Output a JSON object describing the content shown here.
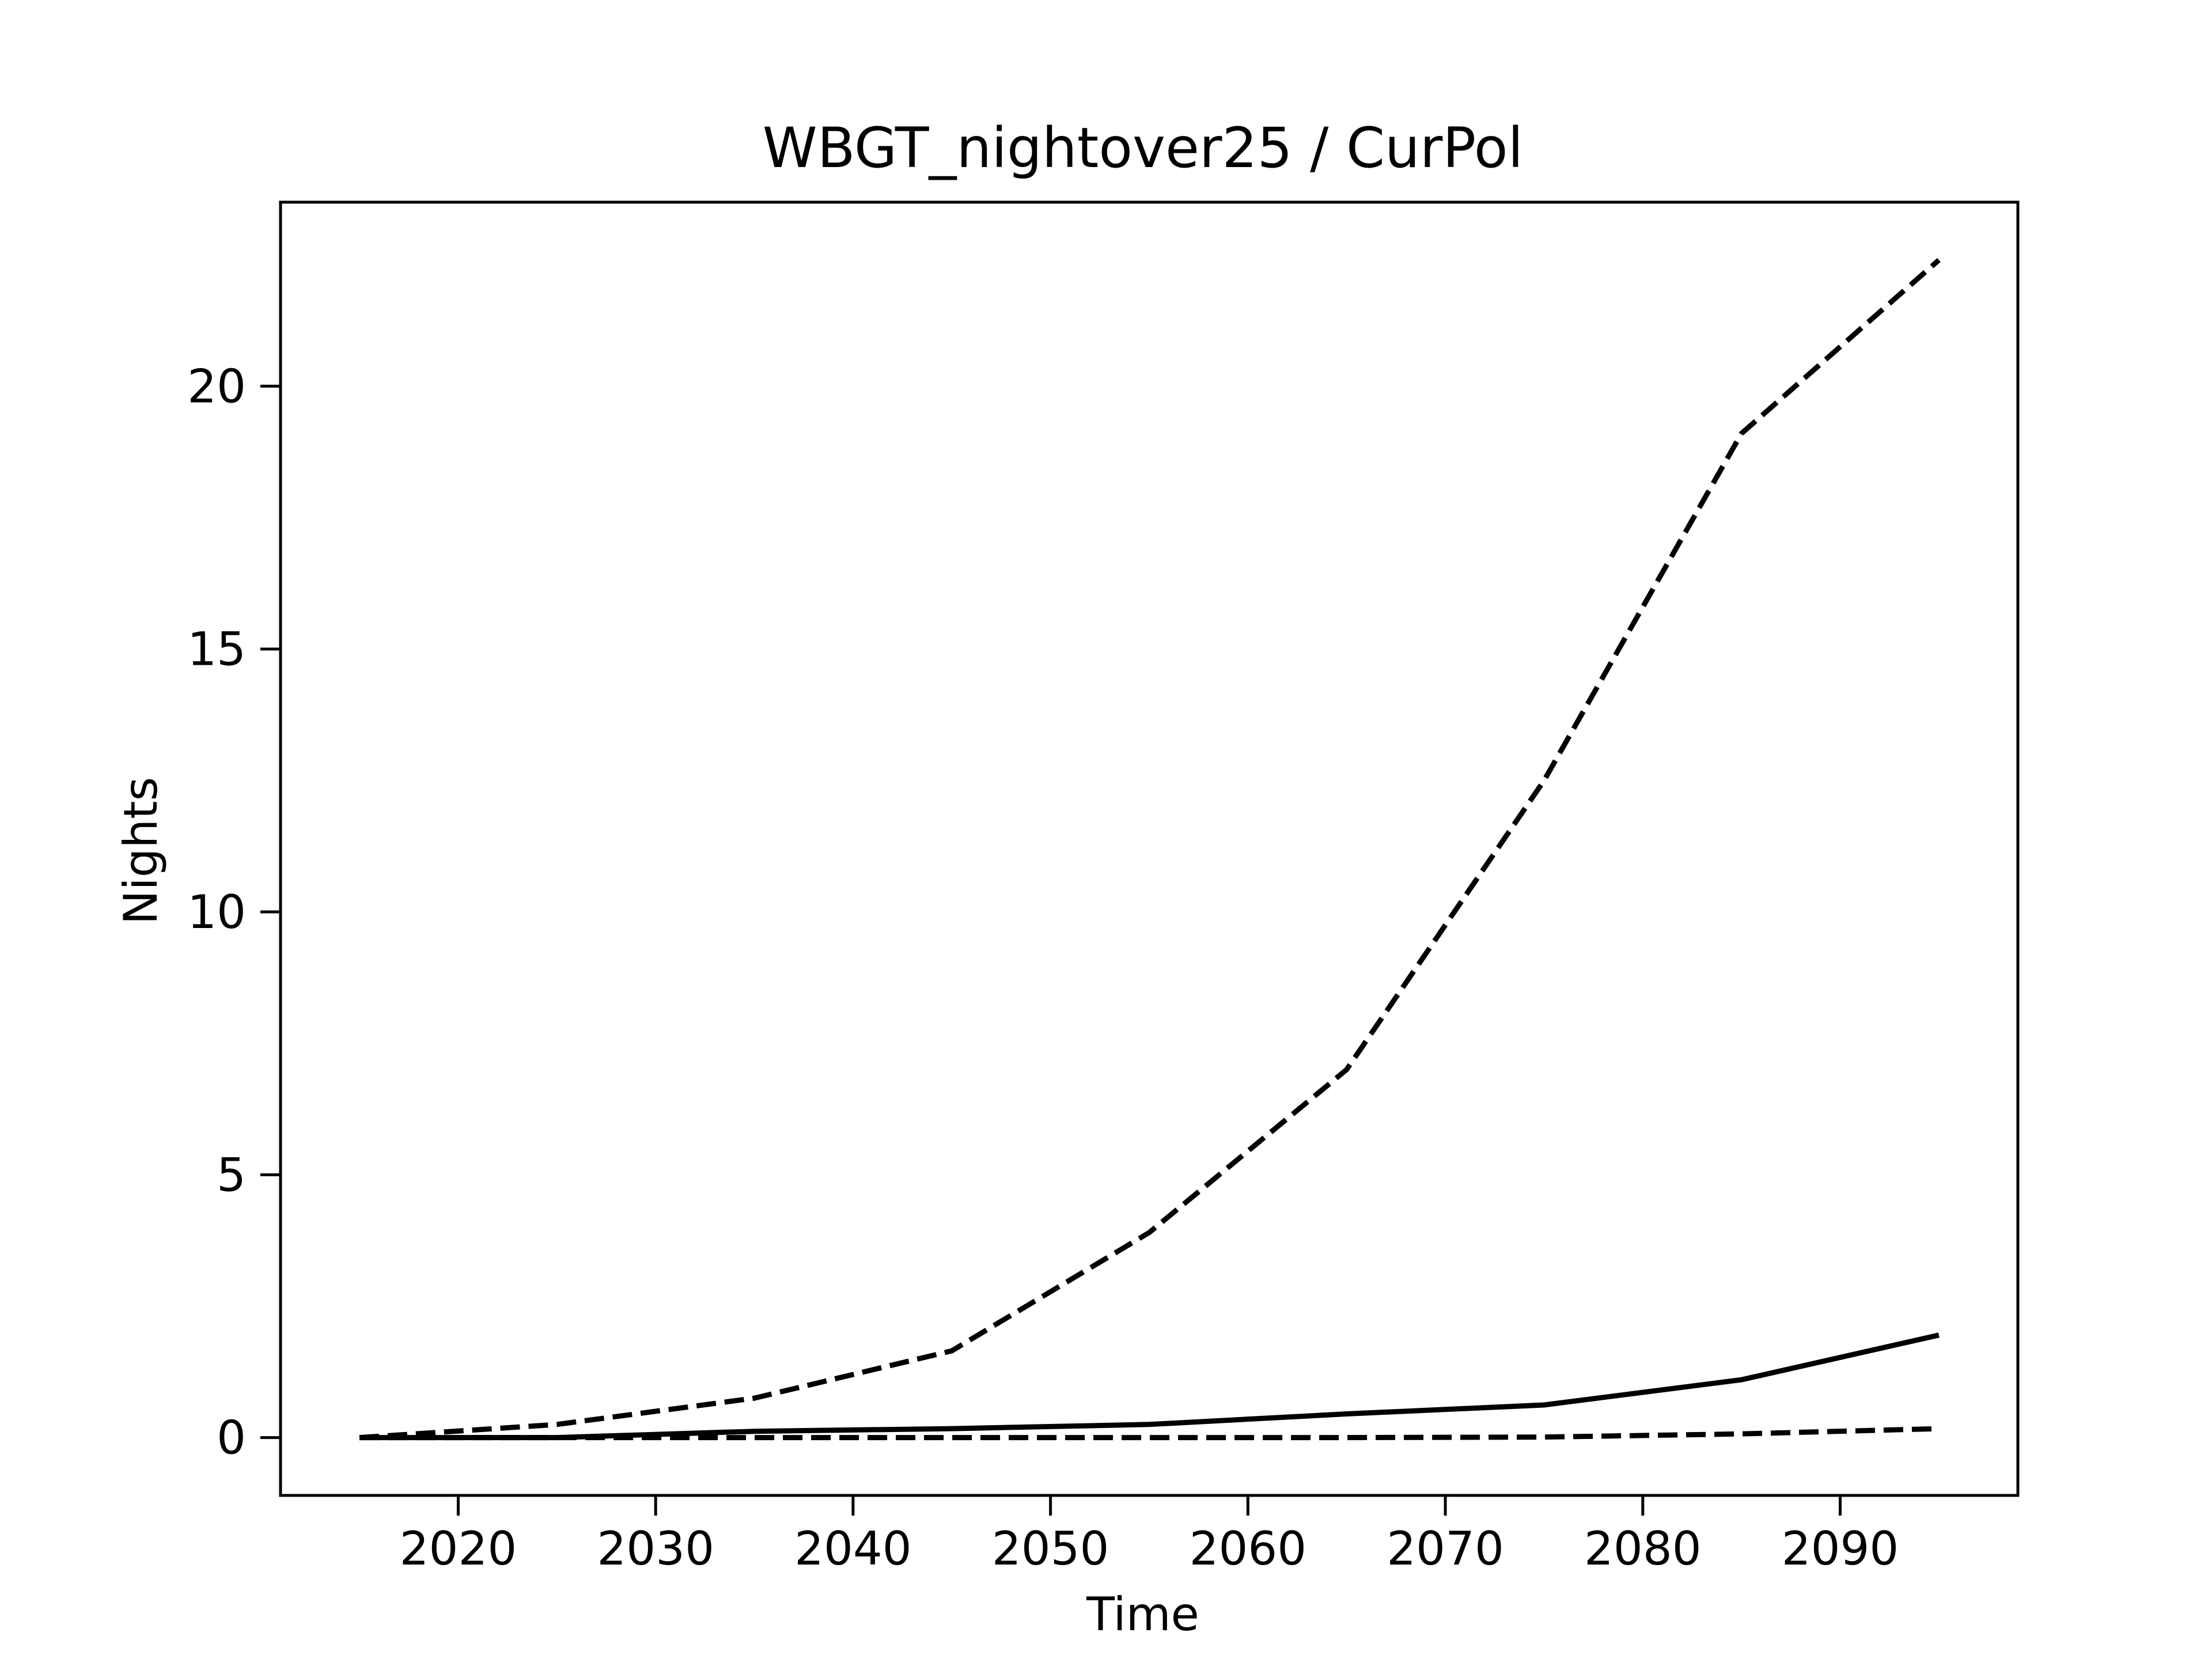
{
  "chart_data": {
    "type": "line",
    "title": "WBGT_nightover25 / CurPol",
    "xlabel": "Time",
    "ylabel": "Nights",
    "xlim": [
      2011,
      2099
    ],
    "ylim": [
      -1.1,
      23.5
    ],
    "xticks": [
      2020,
      2030,
      2040,
      2050,
      2060,
      2070,
      2080,
      2090
    ],
    "yticks": [
      0,
      5,
      10,
      15,
      20
    ],
    "grid": false,
    "colors": {
      "line": "#000000",
      "axes": "#000000",
      "background": "#ffffff"
    },
    "x": [
      2015,
      2025,
      2035,
      2045,
      2055,
      2065,
      2075,
      2085,
      2095
    ],
    "series": [
      {
        "style": "dashed",
        "values": [
          0.0,
          0.25,
          0.75,
          1.65,
          3.9,
          7.0,
          12.5,
          19.1,
          22.4
        ]
      },
      {
        "style": "solid",
        "values": [
          0.0,
          0.0,
          0.12,
          0.17,
          0.25,
          0.45,
          0.62,
          1.1,
          1.95
        ]
      },
      {
        "style": "dashed",
        "values": [
          0.0,
          0.0,
          0.0,
          0.0,
          0.0,
          0.0,
          0.01,
          0.07,
          0.17
        ]
      }
    ]
  }
}
